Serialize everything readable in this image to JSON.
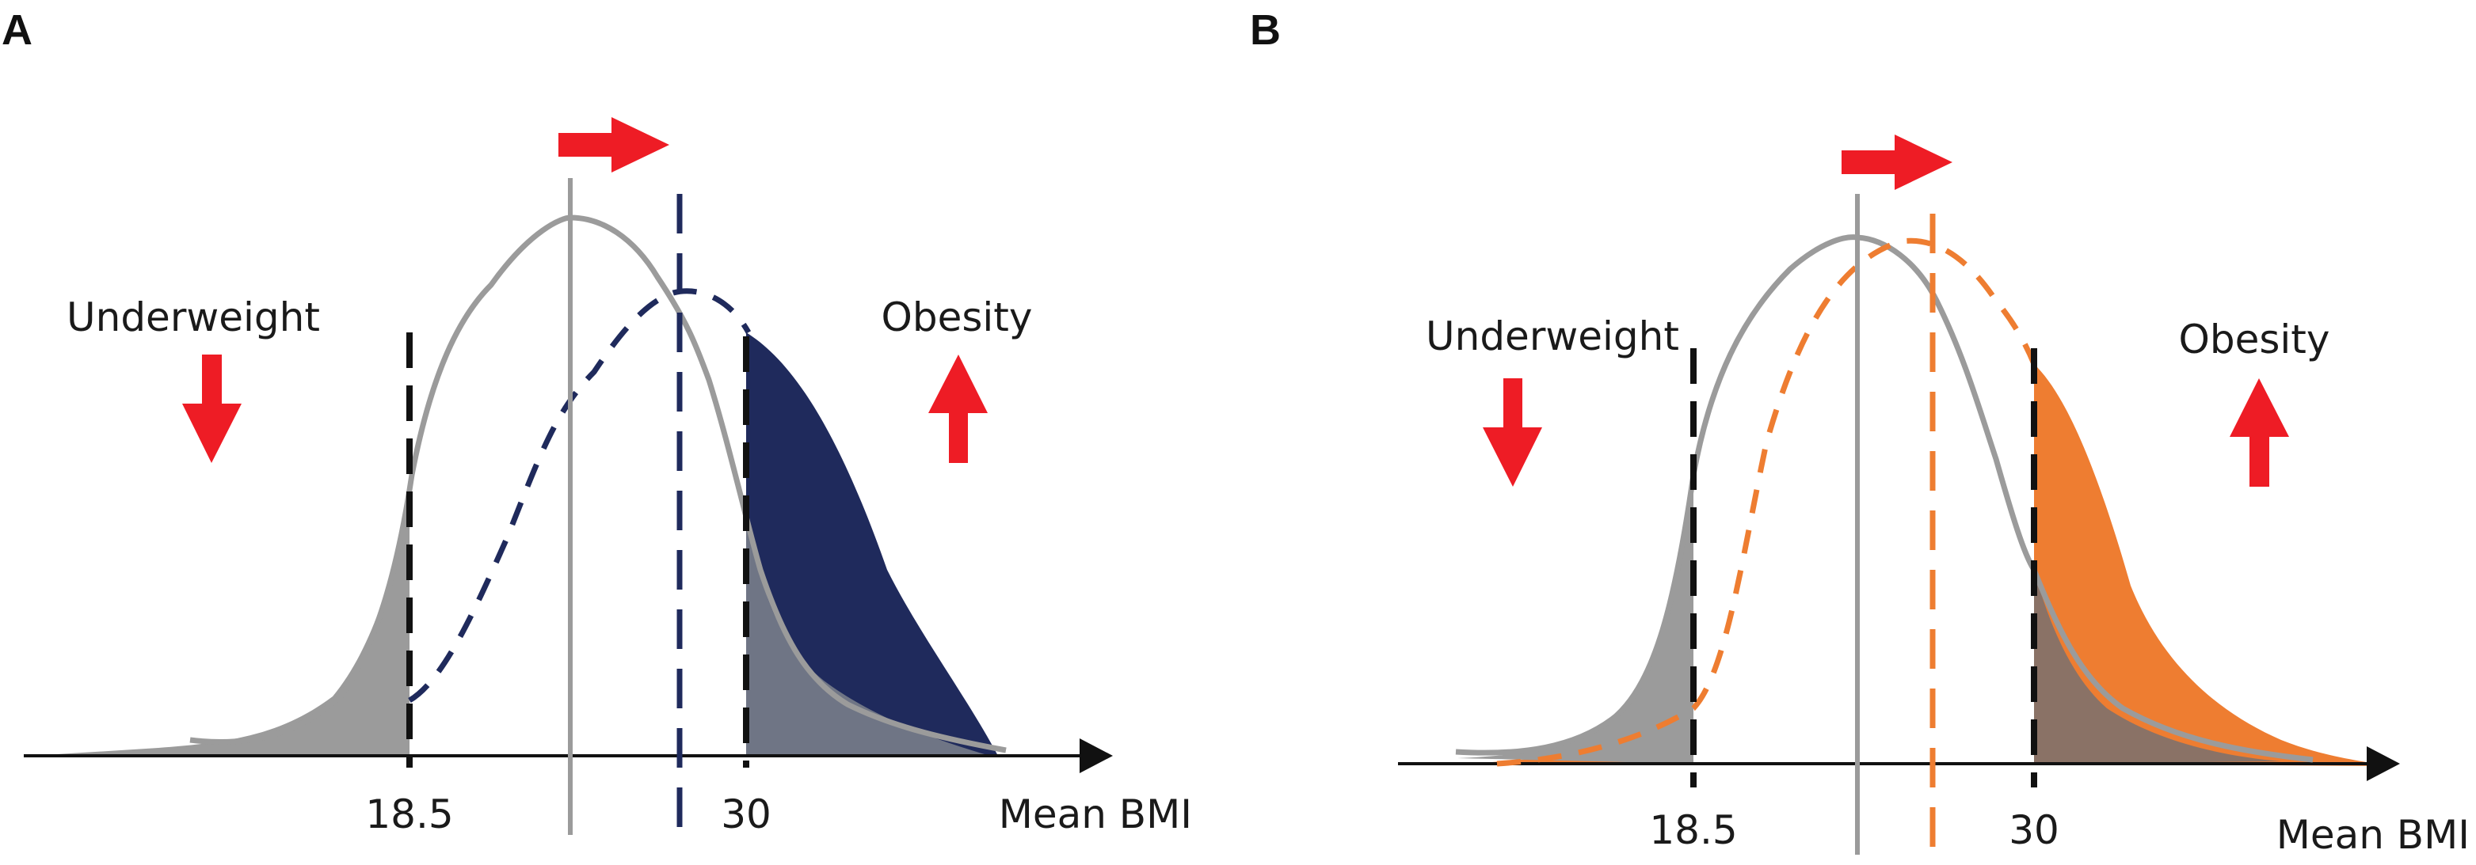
{
  "panels": [
    {
      "letter": "A",
      "underweight_label": "Underweight",
      "obesity_label": "Obesity",
      "threshold_low_label": "18.5",
      "threshold_high_label": "30",
      "axis_label": "Mean BMI",
      "shifted_color": "#1f2a5c",
      "baseline_color": "#9b9b9b",
      "arrow_color": "#ee1c25"
    },
    {
      "letter": "B",
      "underweight_label": "Underweight",
      "obesity_label": "Obesity",
      "threshold_low_label": "18.5",
      "threshold_high_label": "30",
      "axis_label": "Mean BMI",
      "shifted_color": "#ee7d31",
      "baseline_color": "#9b9b9b",
      "arrow_color": "#ee1c25"
    }
  ]
}
